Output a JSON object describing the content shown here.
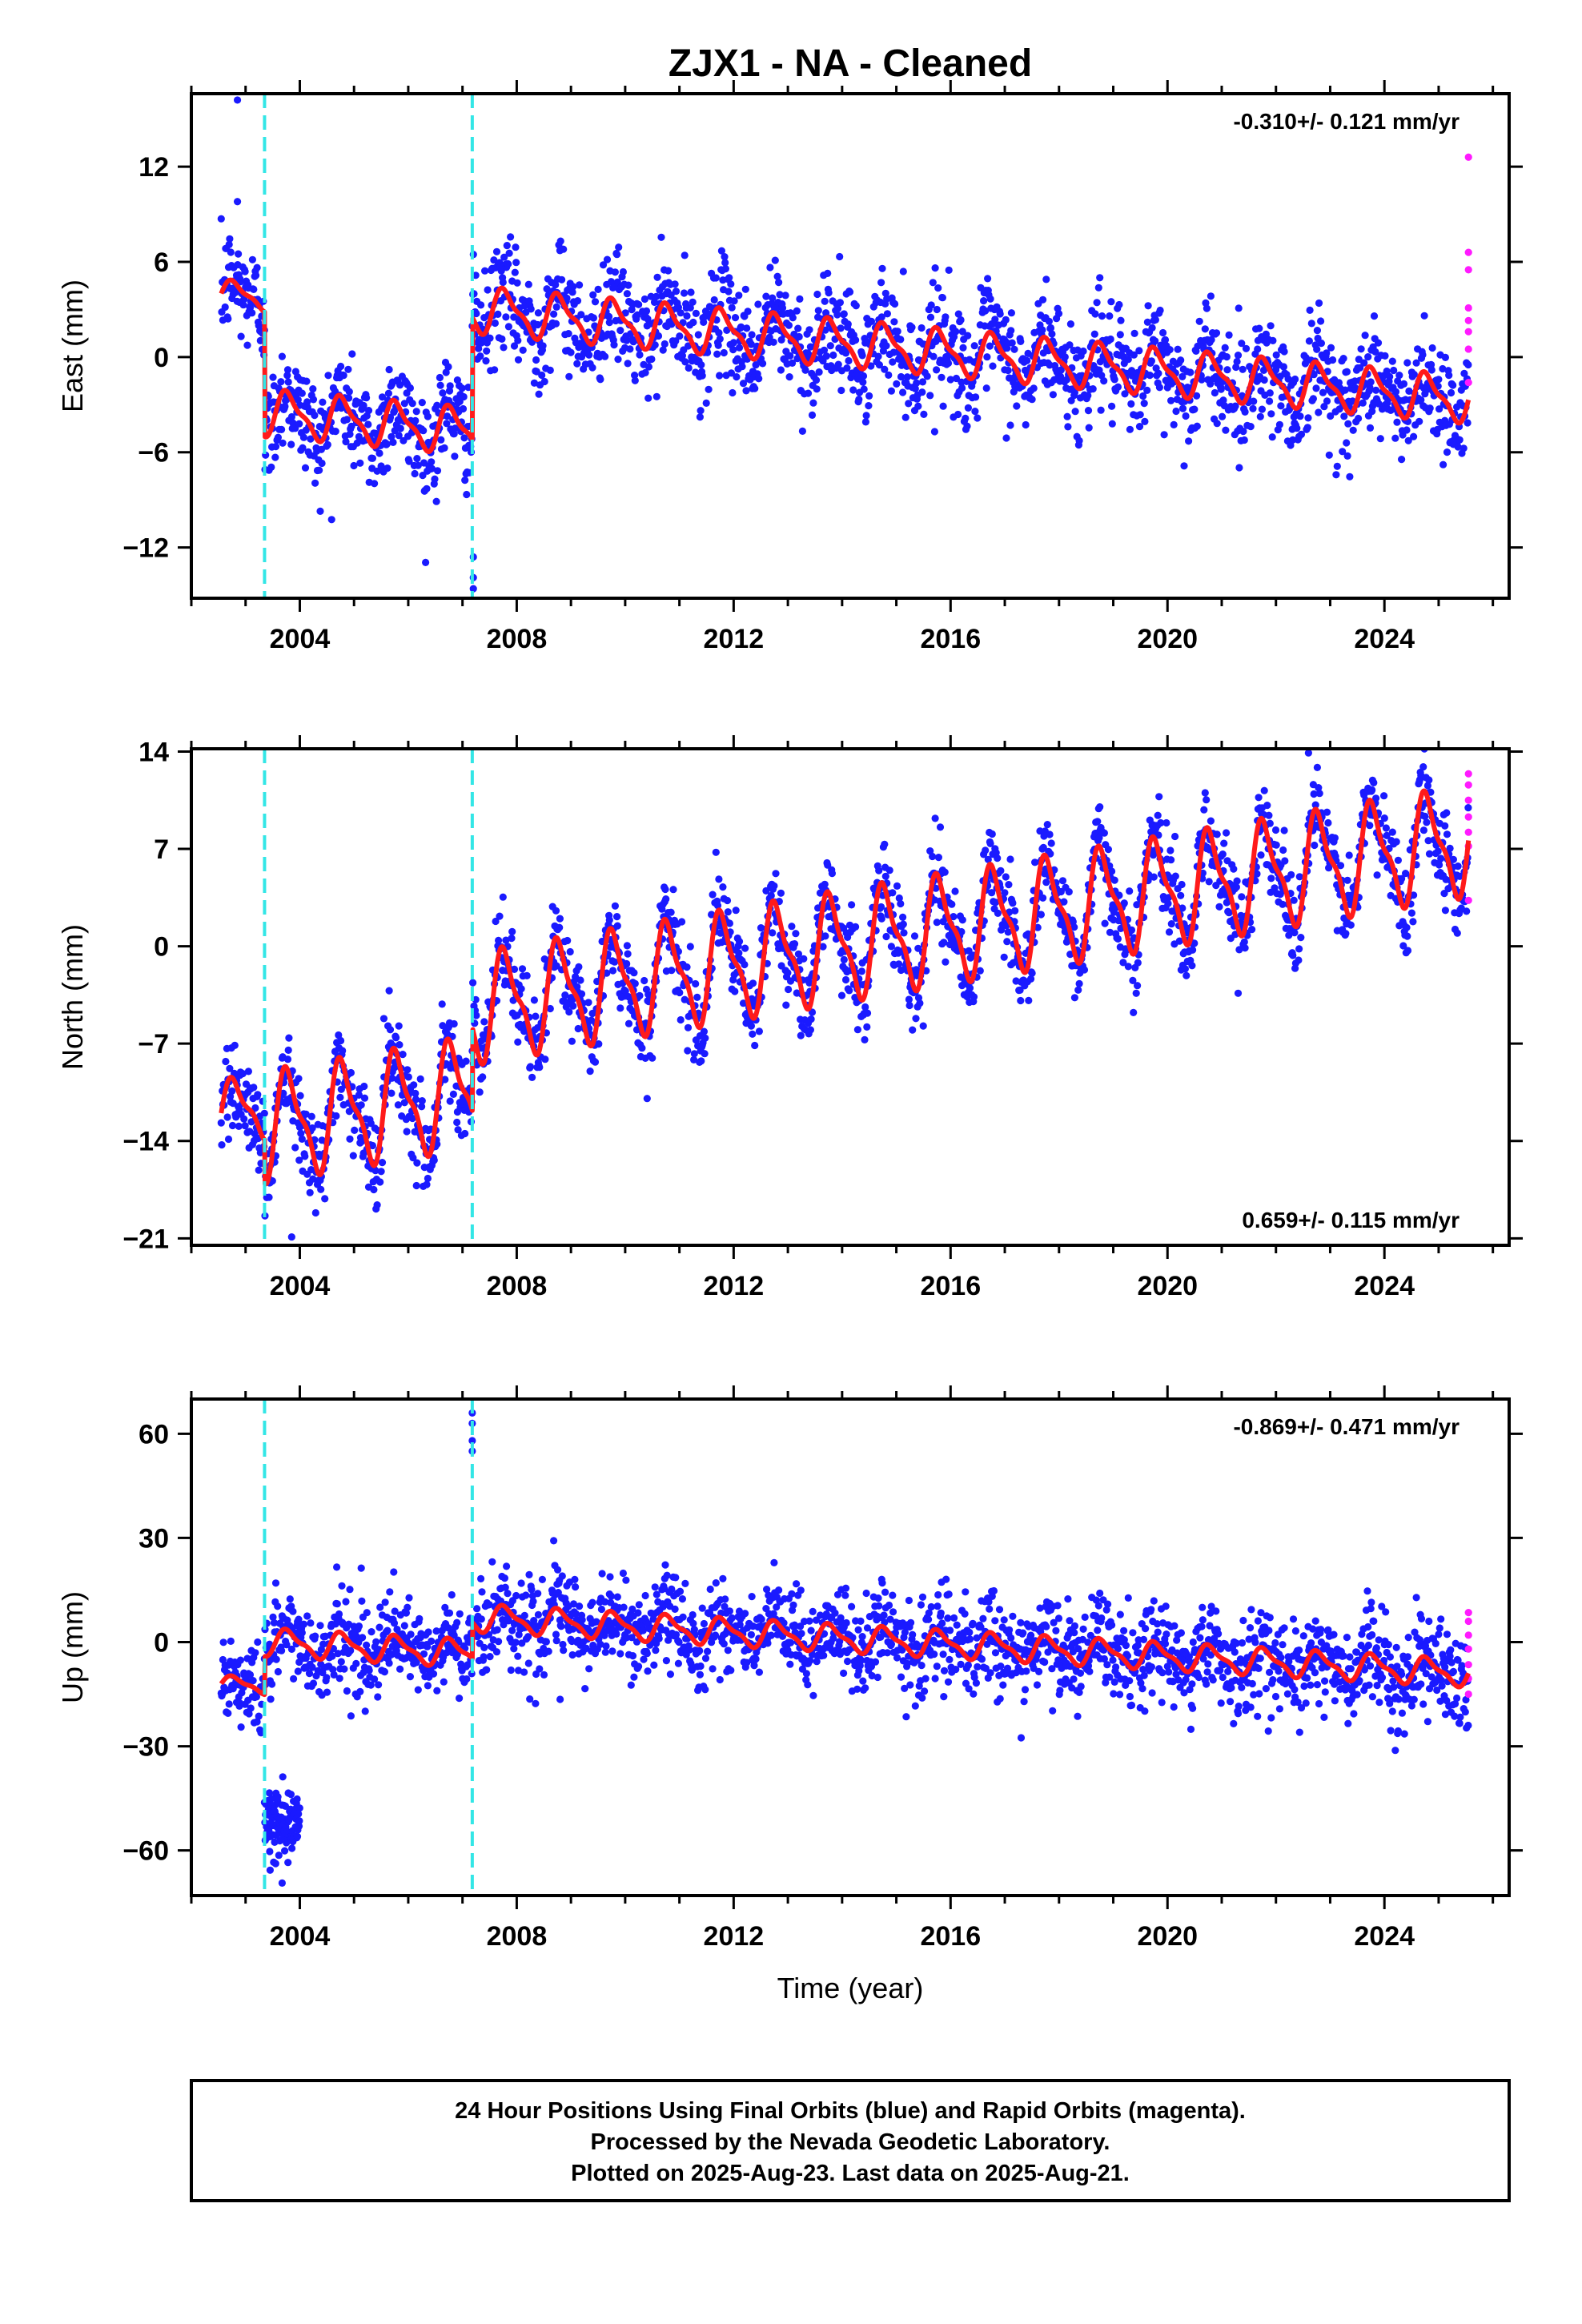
{
  "title": "ZJX1  - NA - Cleaned",
  "colors": {
    "final": "#1a1aff",
    "rapid": "#ff1aff",
    "model": "#ff1a1a",
    "offsets": "#33e6e6",
    "frame": "#000000"
  },
  "chart_data": [
    {
      "type": "scatter",
      "ylabel": "East (mm)",
      "xlabel": "",
      "rate_text": "-0.310+/- 0.121 mm/yr",
      "rate_position": "top-right",
      "xlim": [
        2002.0,
        2026.3
      ],
      "ylim": [
        -15.2,
        16.6
      ],
      "x_ticks": [
        2004,
        2008,
        2012,
        2016,
        2020,
        2024
      ],
      "y_ticks": [
        12,
        6,
        0,
        -6,
        -12
      ],
      "x_tick_labels": [
        "2004",
        "2008",
        "2012",
        "2016",
        "2020",
        "2024"
      ],
      "y_tick_labels": [
        "12",
        "6",
        "0",
        "−6",
        "−12"
      ],
      "offset_epochs": [
        2003.35,
        2007.18
      ],
      "model": {
        "seg1_level": 4.0,
        "seg2_level": -3.5,
        "seg3_start": 3.0,
        "trend": -0.31,
        "annual_amp": 1.3
      },
      "scatter_sigma": 1.7,
      "rapid_points": [
        [
          2025.55,
          12.6
        ],
        [
          2025.55,
          6.6
        ],
        [
          2025.55,
          5.5
        ],
        [
          2025.55,
          3.1
        ],
        [
          2025.55,
          2.3
        ],
        [
          2025.55,
          1.6
        ],
        [
          2025.55,
          0.5
        ],
        [
          2025.55,
          -1.6
        ]
      ],
      "outliers": [
        [
          2002.85,
          16.2
        ],
        [
          2002.85,
          9.8
        ],
        [
          2007.2,
          -12.6
        ],
        [
          2007.2,
          -13.9
        ],
        [
          2007.2,
          -14.6
        ]
      ]
    },
    {
      "type": "scatter",
      "ylabel": "North (mm)",
      "xlabel": "",
      "rate_text": "0.659+/- 0.115 mm/yr",
      "rate_position": "bottom-right",
      "xlim": [
        2002.0,
        2026.3
      ],
      "ylim": [
        -21.5,
        14.2
      ],
      "x_ticks": [
        2004,
        2008,
        2012,
        2016,
        2020,
        2024
      ],
      "y_ticks": [
        14,
        7,
        0,
        -7,
        -14,
        -21
      ],
      "x_tick_labels": [
        "2004",
        "2008",
        "2012",
        "2016",
        "2020",
        "2024"
      ],
      "y_tick_labels": [
        "14",
        "7",
        "0",
        "−7",
        "−14",
        "−21"
      ],
      "offset_epochs": [
        2003.35,
        2007.18
      ],
      "model": {
        "seg1_level": -12.0,
        "seg2_level": -13.0,
        "seg3_start": -4.5,
        "trend": 0.659,
        "annual_amp": 3.5
      },
      "scatter_sigma": 1.6,
      "rapid_points": [
        [
          2025.55,
          12.4
        ],
        [
          2025.55,
          11.6
        ],
        [
          2025.55,
          10.5
        ],
        [
          2025.55,
          9.3
        ],
        [
          2025.55,
          8.2
        ],
        [
          2025.55,
          7.2
        ],
        [
          2025.55,
          3.3
        ]
      ],
      "outliers": [
        [
          2003.85,
          -20.9
        ],
        [
          2005.55,
          -5.2
        ],
        [
          2022.6,
          13.9
        ]
      ]
    },
    {
      "type": "scatter",
      "ylabel": "Up (mm)",
      "xlabel": "Time (year)",
      "rate_text": "-0.869+/- 0.471 mm/yr",
      "rate_position": "top-right",
      "xlim": [
        2002.0,
        2026.3
      ],
      "ylim": [
        -73,
        70
      ],
      "x_ticks": [
        2004,
        2008,
        2012,
        2016,
        2020,
        2024
      ],
      "y_ticks": [
        60,
        30,
        0,
        -30,
        -60
      ],
      "x_tick_labels": [
        "2004",
        "2008",
        "2012",
        "2016",
        "2020",
        "2024"
      ],
      "y_tick_labels": [
        "60",
        "30",
        "0",
        "−30",
        "−60"
      ],
      "offset_epochs": [
        2003.35,
        2007.18
      ],
      "model": {
        "seg1_level": -12.0,
        "seg2_level": 0.0,
        "seg3_start": 7.0,
        "trend": -0.869,
        "annual_amp": 3.5
      },
      "scatter_sigma": 6.5,
      "rapid_points": [
        [
          2025.55,
          8.5
        ],
        [
          2025.55,
          6.0
        ],
        [
          2025.55,
          2.0
        ],
        [
          2025.55,
          -2.0
        ],
        [
          2025.55,
          -6.5
        ],
        [
          2025.55,
          -10.5
        ],
        [
          2025.55,
          -15.0
        ]
      ],
      "outliers": [
        [
          2007.18,
          66
        ],
        [
          2007.18,
          63
        ],
        [
          2007.18,
          58
        ],
        [
          2007.18,
          55
        ],
        [
          2008.8,
          -16.5
        ]
      ],
      "cluster": {
        "x_start": 2003.35,
        "x_end": 2004.0,
        "center": -52,
        "spread": 9
      }
    }
  ],
  "footer": {
    "line1": "24 Hour Positions Using Final Orbits (blue) and Rapid Orbits (magenta).",
    "line2": "Processed by the Nevada Geodetic Laboratory.",
    "line3": "Plotted on 2025-Aug-23. Last data on 2025-Aug-21."
  }
}
